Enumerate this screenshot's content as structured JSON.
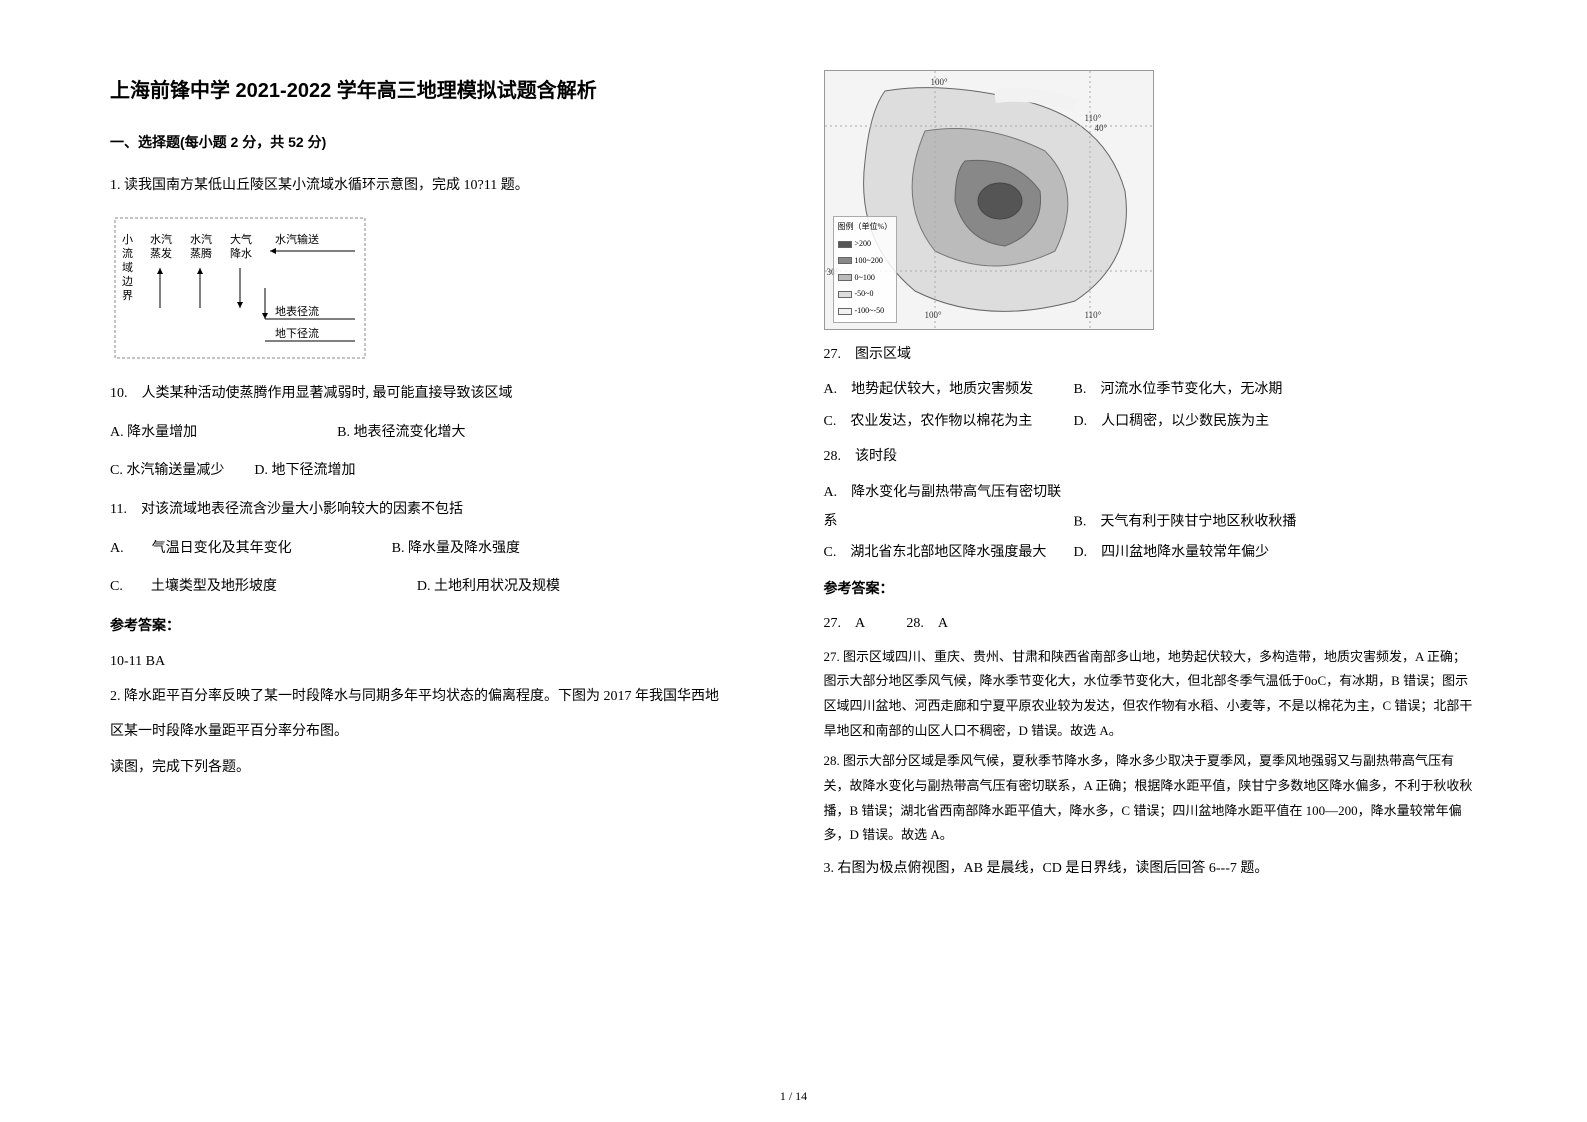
{
  "title": "上海前锋中学 2021-2022 学年高三地理模拟试题含解析",
  "section1": {
    "heading": "一、选择题(每小题 2 分，共 52 分)",
    "q1_stem": "1. 读我国南方某低山丘陵区某小流域水循环示意图，完成 10?11 题。",
    "diagram": {
      "labels": {
        "left_vertical": "小流域边界",
        "c1": "水汽蒸发",
        "c2": "水汽蒸腾",
        "c3": "大气降水",
        "c4": "水汽输送",
        "r1_right": "地表径流",
        "r2_right": "地下径流"
      },
      "colors": {
        "stroke": "#444444",
        "fill": "#ffffff"
      }
    },
    "q10": {
      "stem": "10.　人类某种活动使蒸腾作用显著减弱时, 最可能直接导致该区域",
      "optA": "A. 降水量增加",
      "optB": "B. 地表径流变化增大",
      "optC": "C. 水汽输送量减少",
      "optD": "D. 地下径流增加"
    },
    "q11": {
      "stem": "11.　对该流域地表径流含沙量大小影响较大的因素不包括",
      "optA": "A.　　气温日变化及其年变化",
      "optB": "B. 降水量及降水强度",
      "optC": "C.　　土壤类型及地形坡度",
      "optD": "D. 土地利用状况及规模"
    },
    "answer_head": "参考答案：",
    "answer": "10-11 BA",
    "q2_stem1": "2. 降水距平百分率反映了某一时段降水与同期多年平均状态的偏离程度。下图为 2017 年我国华西地",
    "q2_stem2": "区某一时段降水量距平百分率分布图。",
    "q2_stem3": "读图，完成下列各题。"
  },
  "section2": {
    "map": {
      "coords": {
        "lon_100": "100°",
        "lon_110": "110°",
        "lat_30": "30°",
        "lat_40": "40°"
      },
      "legend_title": "图例（单位%）",
      "legend": [
        {
          "label": ">200",
          "color": "#555555"
        },
        {
          "label": "100~200",
          "color": "#888888"
        },
        {
          "label": "0~100",
          "color": "#bbbbbb"
        },
        {
          "label": "-50~0",
          "color": "#dddddd"
        },
        {
          "label": "-100~-50",
          "color": "#f2f2f2"
        }
      ]
    },
    "q27": {
      "stem": "27.　图示区域",
      "optA": "A.　地势起伏较大，地质灾害频发",
      "optB": "B.　河流水位季节变化大，无冰期",
      "optC": "C.　农业发达，农作物以棉花为主",
      "optD": "D.　人口稠密，以少数民族为主"
    },
    "q28": {
      "stem": "28.　该时段",
      "optA": "A.　降水变化与副热带高气压有密切联系",
      "optB": "B.　天气有利于陕甘宁地区秋收秋播",
      "optC": "C.　湖北省东北部地区降水强度最大",
      "optD": "D.　四川盆地降水量较常年偏少"
    },
    "answer_head": "参考答案：",
    "answer": "27.　A　　　28.　A",
    "exp27": "27. 图示区域四川、重庆、贵州、甘肃和陕西省南部多山地，地势起伏较大，多构造带，地质灾害频发，A 正确；图示大部分地区季风气候，降水季节变化大，水位季节变化大，但北部冬季气温低于0oC，有冰期，B 错误；图示区域四川盆地、河西走廊和宁夏平原农业较为发达，但农作物有水稻、小麦等，不是以棉花为主，C 错误；北部干旱地区和南部的山区人口不稠密，D 错误。故选 A。",
    "exp28": "28. 图示大部分区域是季风气候，夏秋季节降水多，降水多少取决于夏季风，夏季风地强弱又与副热带高气压有关，故降水变化与副热带高气压有密切联系，A 正确；根据降水距平值，陕甘宁多数地区降水偏多，不利于秋收秋播，B 错误；湖北省西南部降水距平值大，降水多，C 错误；四川盆地降水距平值在 100—200，降水量较常年偏多，D 错误。故选 A。",
    "q3_stem": "3. 右图为极点俯视图，AB 是晨线，CD 是日界线，读图后回答 6---7 题。"
  },
  "footer": "1 / 14"
}
